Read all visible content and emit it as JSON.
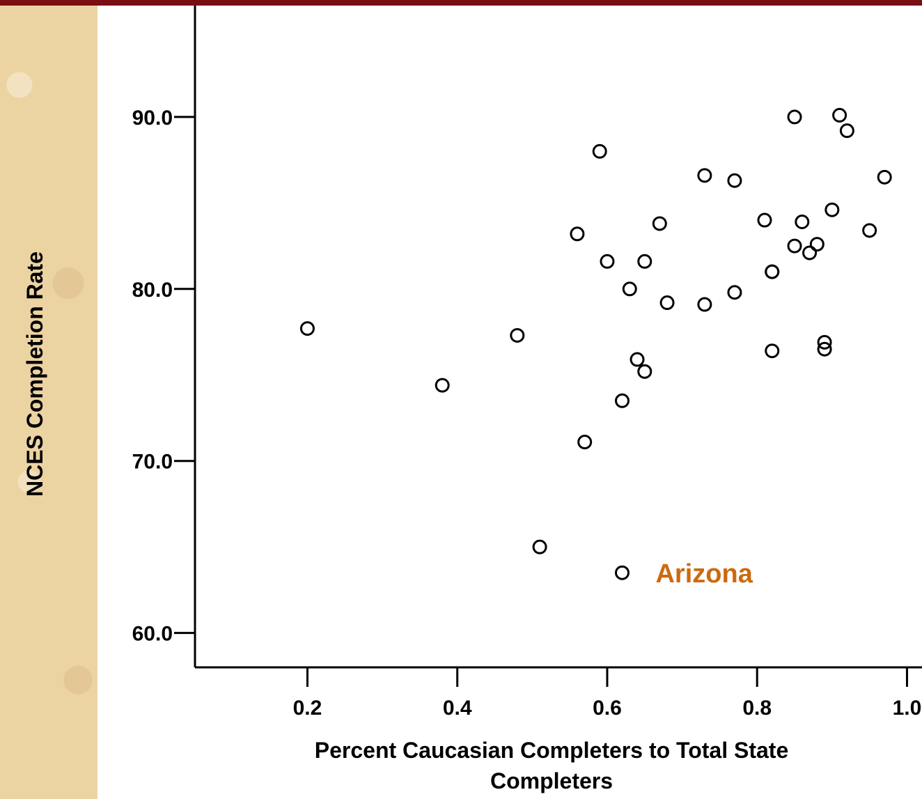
{
  "colors": {
    "top_bar": "#7a0e12",
    "left_strip": "#ecd3a2",
    "annotation": "#cc6a10",
    "marker": "#000000"
  },
  "chart_data": {
    "type": "scatter",
    "xlabel_line1": "Percent Caucasian Completers to Total State",
    "xlabel_line2": "Completers",
    "ylabel": "NCES Completion Rate",
    "xlim": [
      0.05,
      1.02
    ],
    "ylim": [
      58.0,
      96.8
    ],
    "xticks": [
      "0.2",
      "0.4",
      "0.6",
      "0.8",
      "1.0"
    ],
    "yticks": [
      "60.0",
      "70.0",
      "80.0",
      "90.0"
    ],
    "grid": false,
    "legend": "none",
    "annotation": {
      "text": "Arizona",
      "x": 0.62,
      "y": 63.5
    },
    "points": [
      {
        "x": 0.2,
        "y": 77.7
      },
      {
        "x": 0.38,
        "y": 74.4
      },
      {
        "x": 0.48,
        "y": 77.3
      },
      {
        "x": 0.51,
        "y": 65.0
      },
      {
        "x": 0.56,
        "y": 83.2
      },
      {
        "x": 0.57,
        "y": 71.1
      },
      {
        "x": 0.59,
        "y": 88.0
      },
      {
        "x": 0.6,
        "y": 81.6
      },
      {
        "x": 0.62,
        "y": 73.5
      },
      {
        "x": 0.62,
        "y": 63.5
      },
      {
        "x": 0.63,
        "y": 80.0
      },
      {
        "x": 0.64,
        "y": 75.9
      },
      {
        "x": 0.65,
        "y": 75.2
      },
      {
        "x": 0.65,
        "y": 81.6
      },
      {
        "x": 0.67,
        "y": 83.8
      },
      {
        "x": 0.68,
        "y": 79.2
      },
      {
        "x": 0.73,
        "y": 79.1
      },
      {
        "x": 0.73,
        "y": 86.6
      },
      {
        "x": 0.77,
        "y": 79.8
      },
      {
        "x": 0.77,
        "y": 86.3
      },
      {
        "x": 0.81,
        "y": 84.0
      },
      {
        "x": 0.82,
        "y": 81.0
      },
      {
        "x": 0.82,
        "y": 76.4
      },
      {
        "x": 0.82,
        "y": 81.0
      },
      {
        "x": 0.85,
        "y": 90.0
      },
      {
        "x": 0.85,
        "y": 82.5
      },
      {
        "x": 0.86,
        "y": 83.9
      },
      {
        "x": 0.87,
        "y": 82.1
      },
      {
        "x": 0.88,
        "y": 82.6
      },
      {
        "x": 0.89,
        "y": 76.9
      },
      {
        "x": 0.89,
        "y": 76.5
      },
      {
        "x": 0.9,
        "y": 84.6
      },
      {
        "x": 0.91,
        "y": 90.1
      },
      {
        "x": 0.92,
        "y": 89.2
      },
      {
        "x": 0.95,
        "y": 83.4
      },
      {
        "x": 0.97,
        "y": 86.5
      }
    ]
  }
}
